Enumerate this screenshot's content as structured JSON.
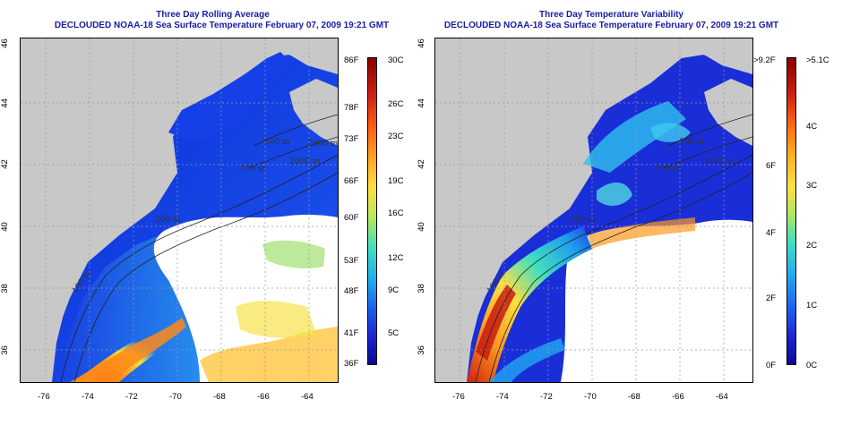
{
  "left_panel": {
    "title_line1": "Three Day Rolling Average",
    "title_line2": "DECLOUDED NOAA-18 Sea Surface Temperature February 07, 2009 19:21 GMT",
    "colorbar_celsius": [
      "30C",
      "26C",
      "23C",
      "19C",
      "16C",
      "12C",
      "9C",
      "5C"
    ],
    "colorbar_fahrenheit": [
      "86F",
      "78F",
      "73F",
      "66F",
      "60F",
      "53F",
      "48F",
      "41F",
      "36F"
    ],
    "depth_labels": [
      "100 m",
      "2000 m",
      "100 m",
      "200 m",
      "100 m",
      "2000 m"
    ]
  },
  "right_panel": {
    "title_line1": "Three Day Temperature Variability",
    "title_line2": "DECLOUDED NOAA-18 Sea Surface Temperature February 07, 2009 19:21 GMT",
    "colorbar_celsius": [
      ">5.1C",
      "4C",
      "3C",
      "2C",
      "1C",
      "0C"
    ],
    "colorbar_fahrenheit": [
      ">9.2F",
      "6F",
      "4F",
      "2F",
      "0F"
    ],
    "depth_labels": [
      "100 m",
      "2000 m",
      "100 m",
      "200 m",
      "100 m"
    ]
  },
  "axes": {
    "longitude_ticks": [
      "-76",
      "-74",
      "-72",
      "-70",
      "-68",
      "-66",
      "-64"
    ],
    "latitude_ticks": [
      "46",
      "44",
      "42",
      "40",
      "38",
      "36"
    ]
  },
  "colors": {
    "land": "#c8c8c8",
    "cloud": "#ffffff",
    "title": "#1a1aa6"
  }
}
